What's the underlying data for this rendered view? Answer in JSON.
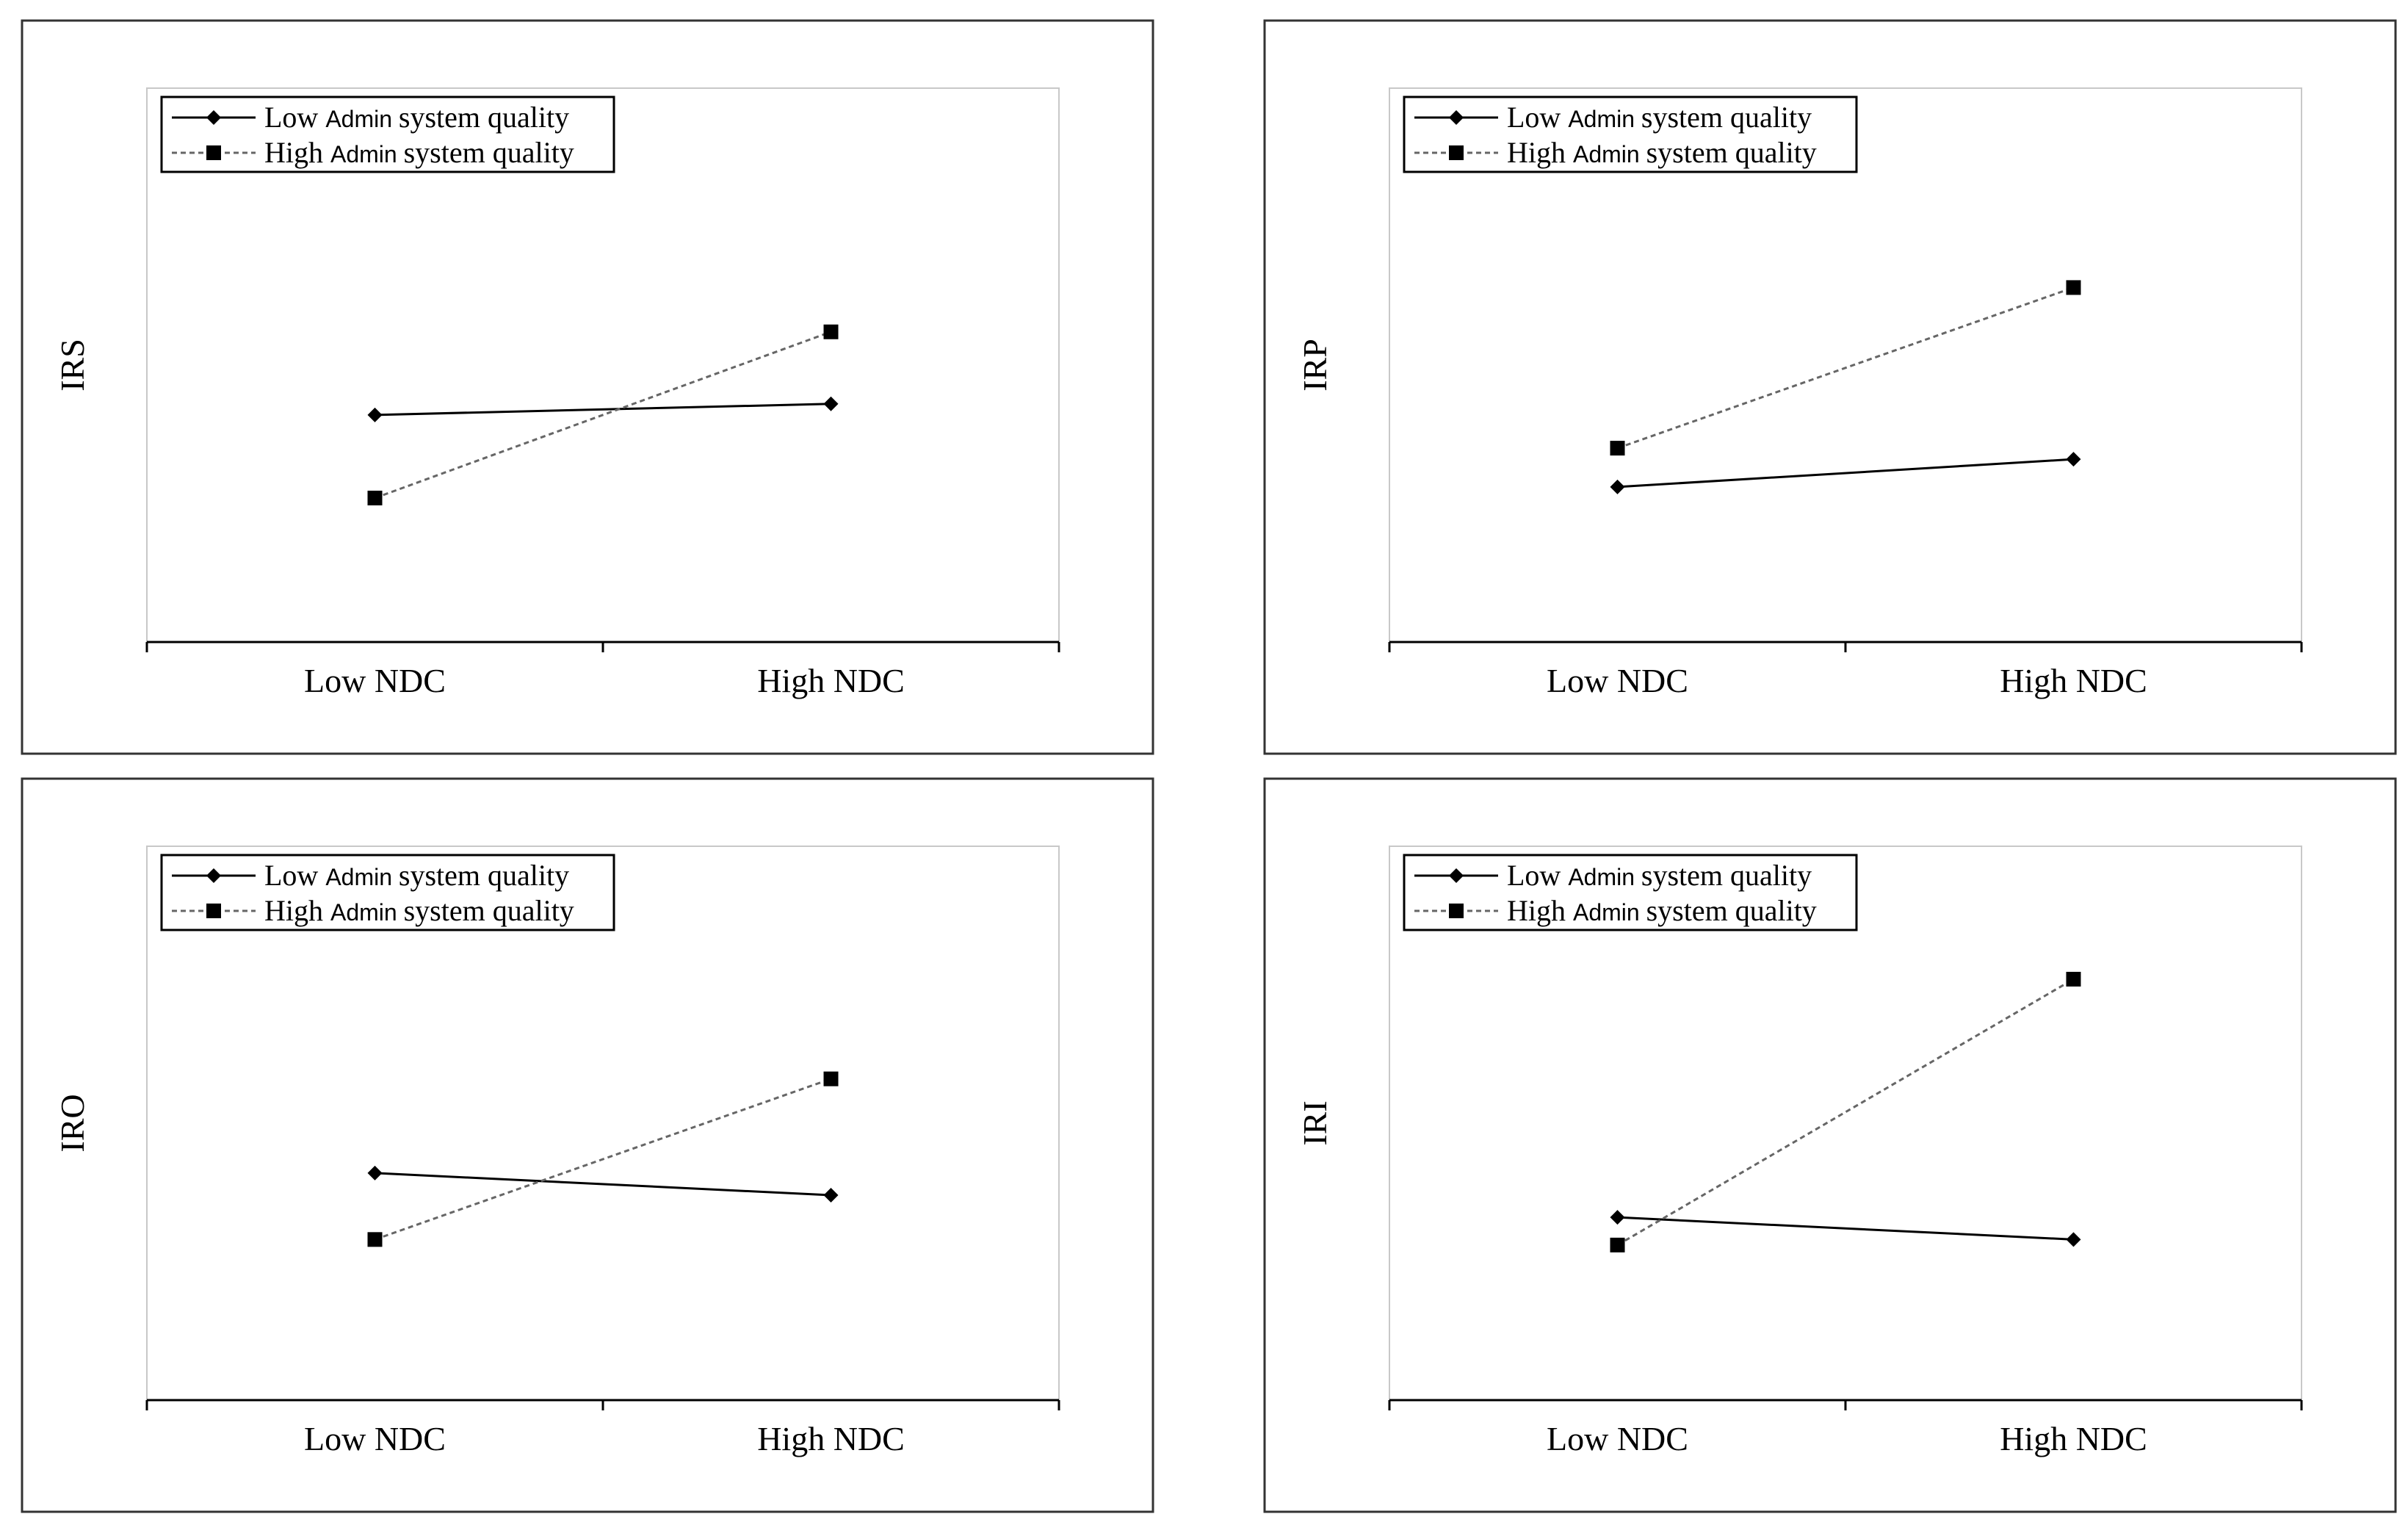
{
  "chart_data": [
    {
      "type": "line",
      "ylabel": "IRS",
      "categories": [
        "Low NDC",
        "High NDC"
      ],
      "ylim": [
        0,
        10
      ],
      "legend": "top-left",
      "grid": false,
      "series": [
        {
          "name_prefix": "Low",
          "name_middle": "Admin",
          "name_suffix": "system quality",
          "values": [
            4.1,
            4.3
          ],
          "marker": "diamond",
          "style": "solid",
          "color": "#000000"
        },
        {
          "name_prefix": "High",
          "name_middle": "Admin",
          "name_suffix": "system quality",
          "values": [
            2.6,
            5.6
          ],
          "marker": "square",
          "style": "dotted",
          "color": "#000000"
        }
      ]
    },
    {
      "type": "line",
      "ylabel": "IRP",
      "categories": [
        "Low NDC",
        "High NDC"
      ],
      "ylim": [
        0,
        10
      ],
      "legend": "top-left",
      "grid": false,
      "series": [
        {
          "name_prefix": "Low",
          "name_middle": "Admin",
          "name_suffix": "system quality",
          "values": [
            2.8,
            3.3
          ],
          "marker": "diamond",
          "style": "solid",
          "color": "#000000"
        },
        {
          "name_prefix": "High",
          "name_middle": "Admin",
          "name_suffix": "system quality",
          "values": [
            3.5,
            6.4
          ],
          "marker": "square",
          "style": "dotted",
          "color": "#000000"
        }
      ]
    },
    {
      "type": "line",
      "ylabel": "IRO",
      "categories": [
        "Low NDC",
        "High NDC"
      ],
      "ylim": [
        0,
        10
      ],
      "legend": "top-left",
      "grid": false,
      "series": [
        {
          "name_prefix": "Low",
          "name_middle": "Admin",
          "name_suffix": "system quality",
          "values": [
            4.1,
            3.7
          ],
          "marker": "diamond",
          "style": "solid",
          "color": "#000000"
        },
        {
          "name_prefix": "High",
          "name_middle": "Admin",
          "name_suffix": "system quality",
          "values": [
            2.9,
            5.8
          ],
          "marker": "square",
          "style": "dotted",
          "color": "#000000"
        }
      ]
    },
    {
      "type": "line",
      "ylabel": "IRI",
      "categories": [
        "Low NDC",
        "High NDC"
      ],
      "ylim": [
        0,
        10
      ],
      "legend": "top-left",
      "grid": false,
      "series": [
        {
          "name_prefix": "Low",
          "name_middle": "Admin",
          "name_suffix": "system quality",
          "values": [
            3.3,
            2.9
          ],
          "marker": "diamond",
          "style": "solid",
          "color": "#000000"
        },
        {
          "name_prefix": "High",
          "name_middle": "Admin",
          "name_suffix": "system quality",
          "values": [
            2.8,
            7.6
          ],
          "marker": "square",
          "style": "dotted",
          "color": "#000000"
        }
      ]
    }
  ]
}
